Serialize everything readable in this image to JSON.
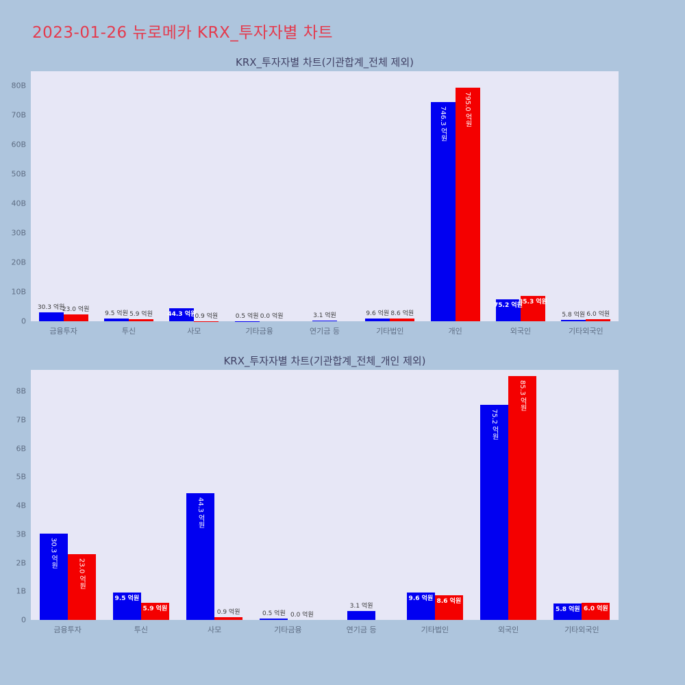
{
  "page": {
    "title": "2023-01-26 뉴로메카 KRX_투자자별 차트",
    "background": "#aec5dd",
    "title_color": "#e43a4d"
  },
  "colors": {
    "bar_blue": "#0100f1",
    "bar_red": "#f40000",
    "plot_background": "#e7e7f6"
  },
  "chart_data": [
    {
      "type": "bar",
      "title": "KRX_투자자별 차트(기관합계_전체 제외)",
      "unit": "억원",
      "value_suffix": " 억원",
      "categories": [
        "금융투자",
        "투신",
        "사모",
        "기타금융",
        "연기금 등",
        "기타법인",
        "개인",
        "외국인",
        "기타외국인"
      ],
      "series": [
        {
          "name": "blue-series",
          "color": "#0100f1",
          "values": [
            30.3,
            9.5,
            44.3,
            0.5,
            3.1,
            9.6,
            746.3,
            75.2,
            5.8
          ]
        },
        {
          "name": "red-series",
          "color": "#f40000",
          "values": [
            23.0,
            5.9,
            0.9,
            0.0,
            null,
            8.6,
            795.0,
            85.3,
            6.0
          ]
        }
      ],
      "ylim_b": [
        0,
        85
      ],
      "yticks": [
        {
          "v": 0,
          "label": "0"
        },
        {
          "v": 10,
          "label": "10B"
        },
        {
          "v": 20,
          "label": "20B"
        },
        {
          "v": 30,
          "label": "30B"
        },
        {
          "v": 40,
          "label": "40B"
        },
        {
          "v": 50,
          "label": "50B"
        },
        {
          "v": 60,
          "label": "60B"
        },
        {
          "v": 70,
          "label": "70B"
        },
        {
          "v": 80,
          "label": "80B"
        }
      ],
      "grid": false,
      "legend": false
    },
    {
      "type": "bar",
      "title": "KRX_투자자별 차트(기관합계_전체_개인 제외)",
      "unit": "억원",
      "value_suffix": " 억원",
      "categories": [
        "금융투자",
        "투신",
        "사모",
        "기타금융",
        "연기금 등",
        "기타법인",
        "외국인",
        "기타외국인"
      ],
      "series": [
        {
          "name": "blue-series",
          "color": "#0100f1",
          "values": [
            30.3,
            9.5,
            44.3,
            0.5,
            3.1,
            9.6,
            75.2,
            5.8
          ]
        },
        {
          "name": "red-series",
          "color": "#f40000",
          "values": [
            23.0,
            5.9,
            0.9,
            0.0,
            null,
            8.6,
            85.3,
            6.0
          ]
        }
      ],
      "ylim_b": [
        0,
        8.75
      ],
      "yticks": [
        {
          "v": 0,
          "label": "0"
        },
        {
          "v": 1,
          "label": "1B"
        },
        {
          "v": 2,
          "label": "2B"
        },
        {
          "v": 3,
          "label": "3B"
        },
        {
          "v": 4,
          "label": "4B"
        },
        {
          "v": 5,
          "label": "5B"
        },
        {
          "v": 6,
          "label": "6B"
        },
        {
          "v": 7,
          "label": "7B"
        },
        {
          "v": 8,
          "label": "8B"
        }
      ],
      "grid": false,
      "legend": false
    }
  ]
}
